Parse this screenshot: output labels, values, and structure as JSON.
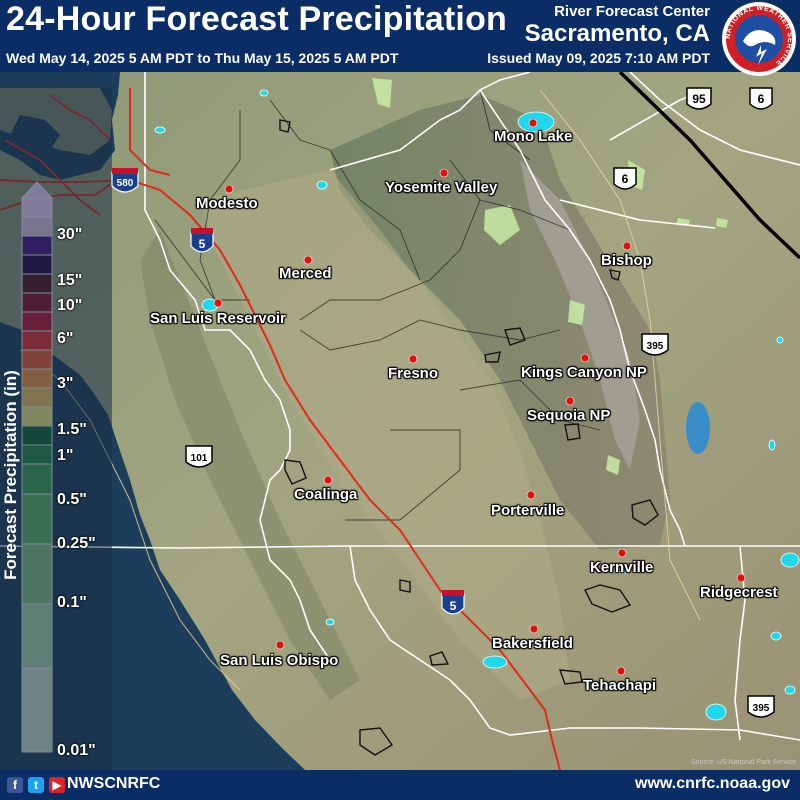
{
  "header": {
    "title": "24-Hour Forecast Precipitation",
    "period": "Wed May 14, 2025 5 AM PDT to Thu May 15, 2025 5 AM PDT",
    "agency": "River Forecast Center",
    "location": "Sacramento, CA",
    "issued": "Issued May 09, 2025 7:10 AM PDT"
  },
  "logo": {
    "ring_text": "NATIONAL WEATHER SERVICE",
    "colors": {
      "ring": "#ffffff",
      "inner": "#1e4fa3",
      "accent": "#d21f26"
    }
  },
  "legend": {
    "title": "Forecast Precipitation (in)",
    "labels": [
      "30\"",
      "15\"",
      "10\"",
      "6\"",
      "3\"",
      "1.5\"",
      "1\"",
      "0.5\"",
      "0.25\"",
      "0.1\"",
      "0.01\""
    ],
    "colors": [
      "#ffdcff",
      "#eccaec",
      "#4a0f82",
      "#25023c",
      "#560f14",
      "#8a0e1f",
      "#c8102a",
      "#ef2a2a",
      "#ff5b2e",
      "#ff9b3a",
      "#ffc857",
      "#fff384",
      "#0d6b2a",
      "#238d3f",
      "#3ca94f",
      "#62bc64",
      "#8ccd84",
      "#b7deb0",
      "#d9ecd4"
    ]
  },
  "cities": [
    {
      "name": "Modesto"
    },
    {
      "name": "Merced"
    },
    {
      "name": "San Luis Reservoir"
    },
    {
      "name": "Yosemite Valley"
    },
    {
      "name": "Mono Lake"
    },
    {
      "name": "Bishop"
    },
    {
      "name": "Fresno"
    },
    {
      "name": "Kings Canyon NP"
    },
    {
      "name": "Sequoia NP"
    },
    {
      "name": "Coalinga"
    },
    {
      "name": "Porterville"
    },
    {
      "name": "Kernville"
    },
    {
      "name": "Ridgecrest"
    },
    {
      "name": "Bakersfield"
    },
    {
      "name": "San Luis Obispo"
    },
    {
      "name": "Tehachapi"
    }
  ],
  "highway_shields": {
    "interstate": [
      "580",
      "5",
      "5"
    ],
    "us_route": [
      "95",
      "6",
      "6",
      "395",
      "101",
      "395"
    ]
  },
  "colors": {
    "header_bg": "#0b2d66",
    "ocean": "#1d3e5a",
    "land": "#98a07c",
    "highway": "#e22a1a",
    "city_dot": "#e11010",
    "lake": "#1fd8ec",
    "park": "#c9eca4"
  },
  "footer": {
    "handle": "NWSCNRFC",
    "website": "www.cnrfc.noaa.gov",
    "icons": [
      "facebook-icon",
      "twitter-icon",
      "youtube-icon"
    ]
  },
  "credit": "Source: US National Park Service"
}
